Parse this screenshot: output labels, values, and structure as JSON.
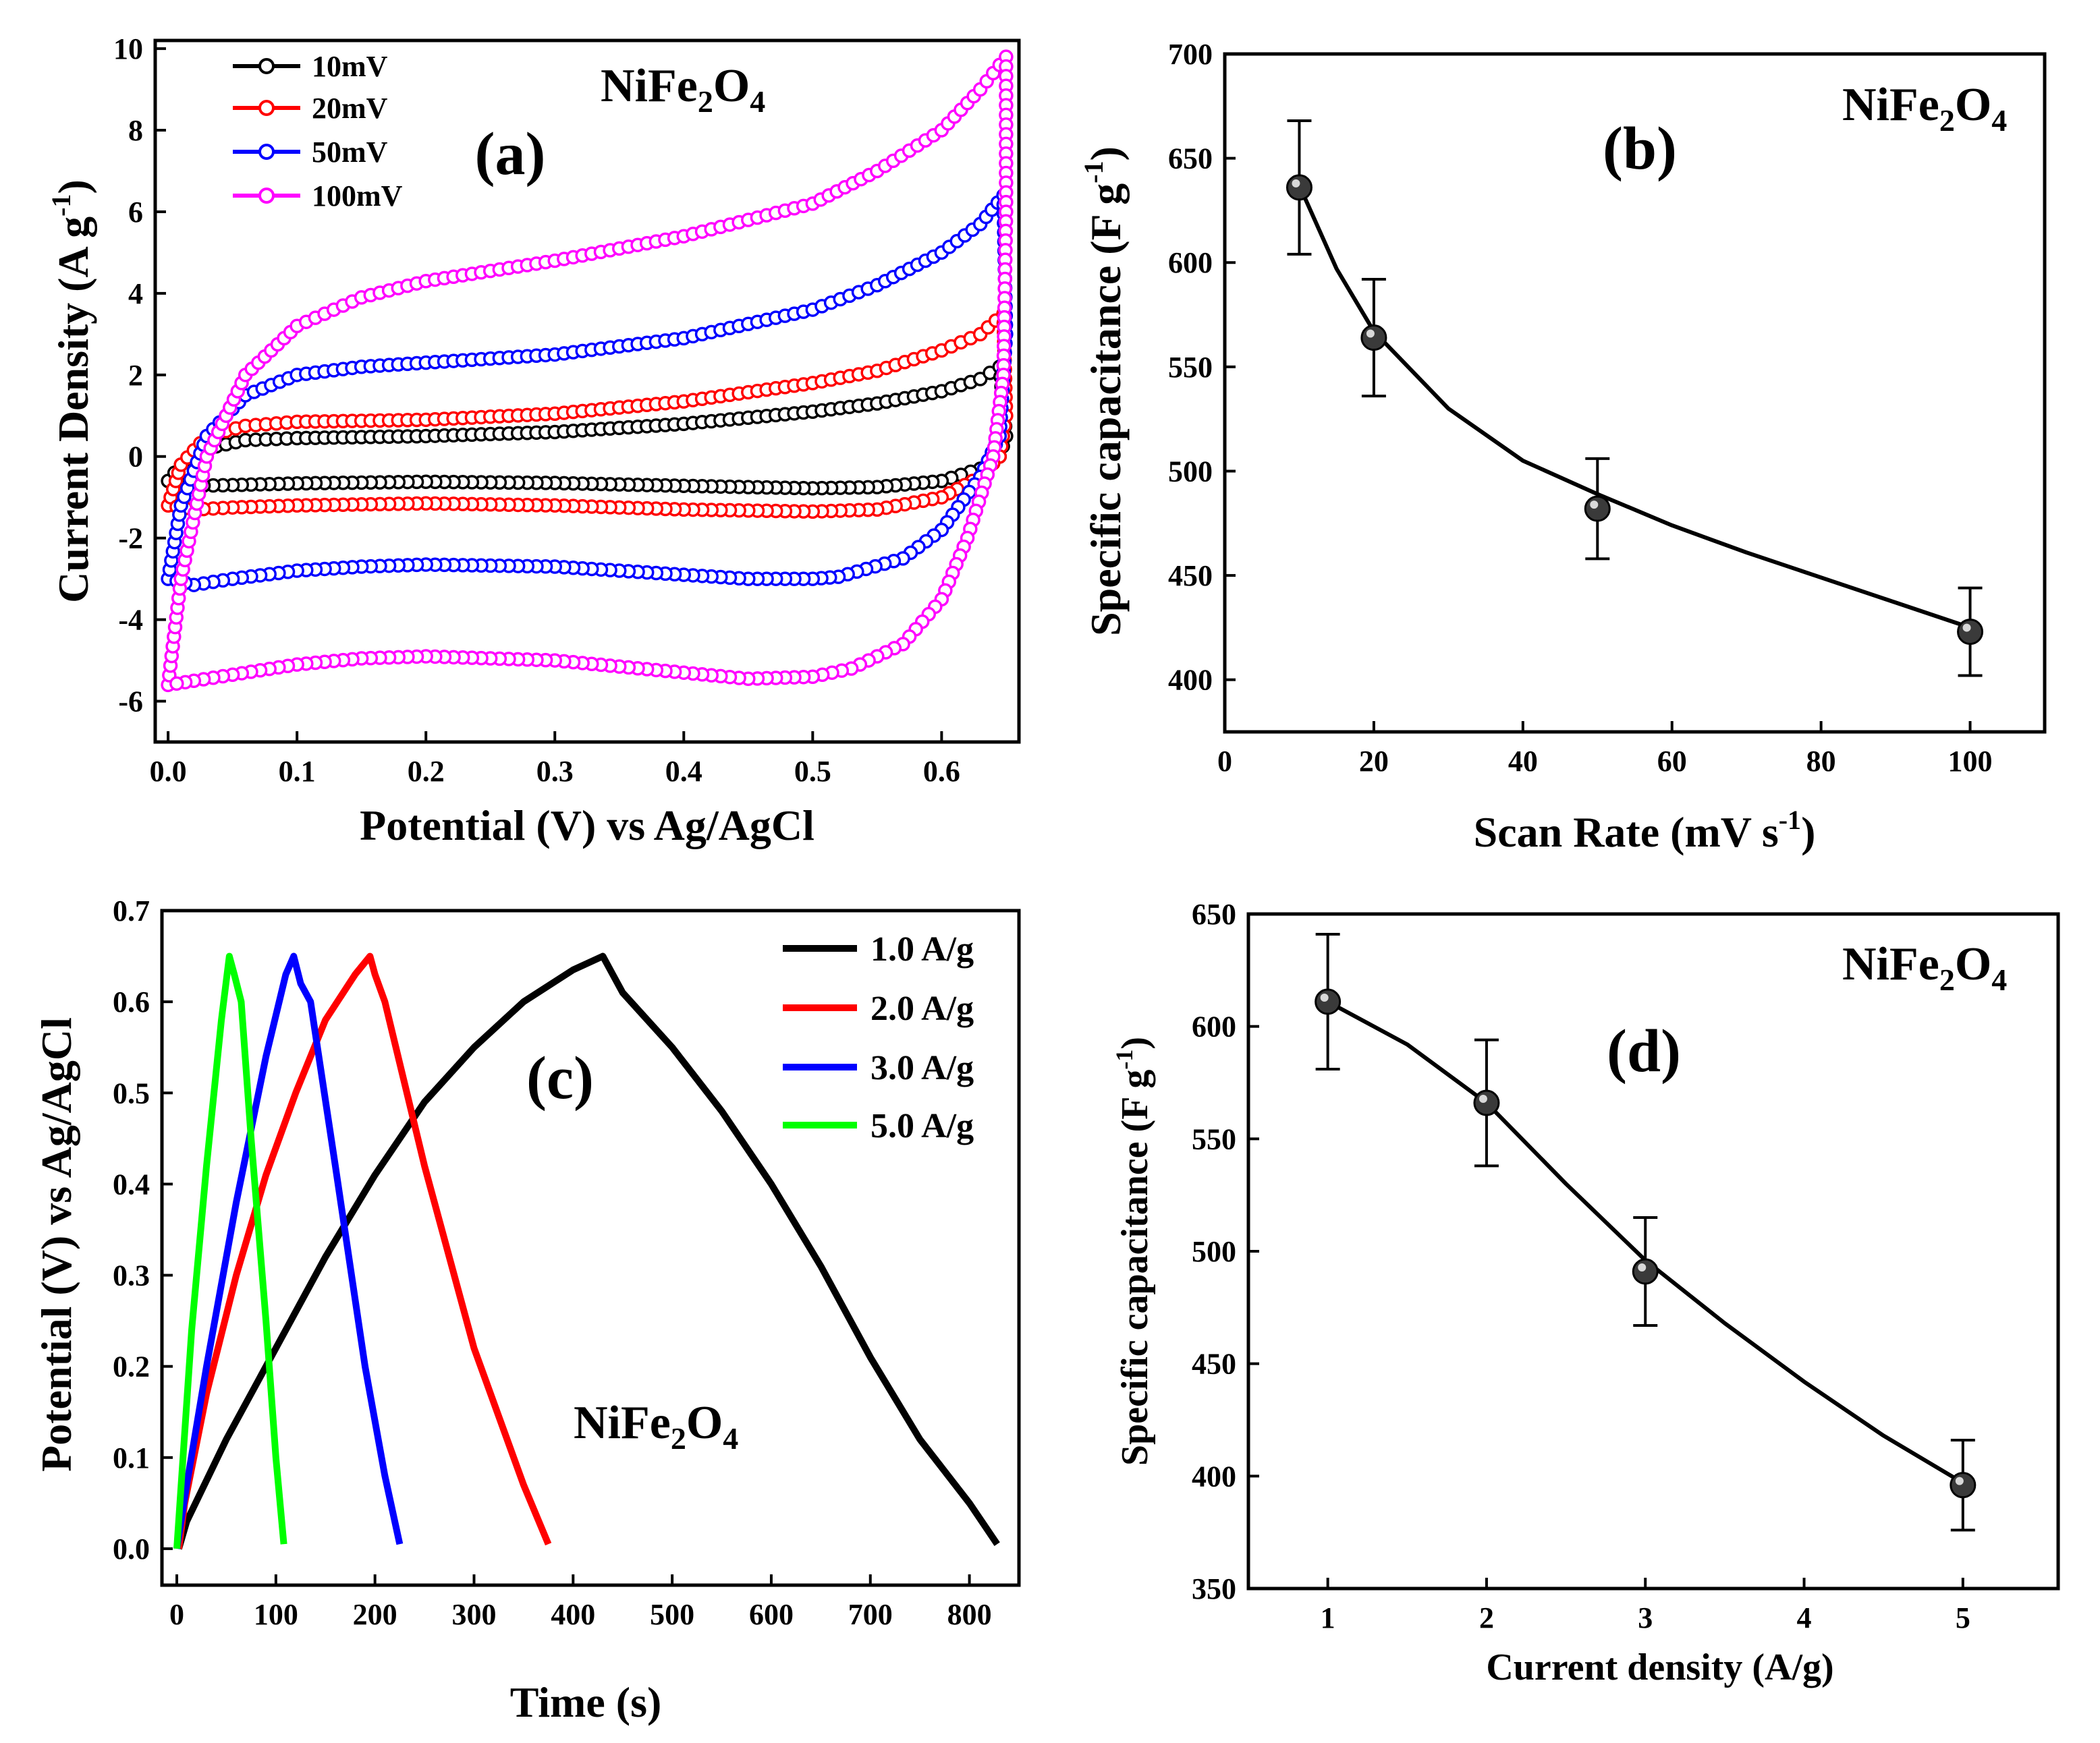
{
  "colors": {
    "10mV": "#000000",
    "20mV": "#ff0000",
    "50mV": "#0000ff",
    "100mV": "#ff00ff",
    "1.0 A/g": "#000000",
    "2.0 A/g": "#ff0000",
    "3.0 A/g": "#0000ff",
    "5.0 A/g": "#00ff00"
  },
  "chart_data": [
    {
      "panel": "(a)",
      "type": "line",
      "compound": {
        "base1": "NiFe",
        "sub1": "2",
        "base2": "O",
        "sub2": "4"
      },
      "xlabel": "Potential (V) vs Ag/AgCl",
      "ylabel": {
        "main": "Current Density (A g",
        "sup": "-1",
        "tail": ")"
      },
      "xlim": [
        -0.01,
        0.66
      ],
      "ylim": [
        -7,
        10.2
      ],
      "xticks": [
        "0.0",
        "0.1",
        "0.2",
        "0.3",
        "0.4",
        "0.5",
        "0.6"
      ],
      "xtick_values": [
        0.0,
        0.1,
        0.2,
        0.3,
        0.4,
        0.5,
        0.6
      ],
      "yticks": [
        "-6",
        "-4",
        "-2",
        "0",
        "2",
        "4",
        "6",
        "8",
        "10"
      ],
      "ytick_values": [
        -6,
        -4,
        -2,
        0,
        2,
        4,
        6,
        8,
        10
      ],
      "legend_position": "top-left",
      "series": [
        {
          "name": "10mV",
          "x": [
            0.0,
            0.01,
            0.03,
            0.06,
            0.1,
            0.2,
            0.3,
            0.4,
            0.5,
            0.55,
            0.6,
            0.63,
            0.645,
            0.65,
            0.645,
            0.63,
            0.6,
            0.55,
            0.5,
            0.4,
            0.3,
            0.2,
            0.1,
            0.05,
            0.02,
            0.0
          ],
          "y": [
            -0.6,
            -0.2,
            0.2,
            0.4,
            0.45,
            0.5,
            0.6,
            0.8,
            1.1,
            1.3,
            1.6,
            1.9,
            2.2,
            0.5,
            0.0,
            -0.3,
            -0.6,
            -0.75,
            -0.78,
            -0.72,
            -0.65,
            -0.62,
            -0.66,
            -0.7,
            -0.72,
            -0.6
          ]
        },
        {
          "name": "20mV",
          "x": [
            0.0,
            0.01,
            0.03,
            0.06,
            0.1,
            0.2,
            0.3,
            0.4,
            0.5,
            0.55,
            0.6,
            0.63,
            0.648,
            0.65,
            0.645,
            0.63,
            0.6,
            0.55,
            0.5,
            0.4,
            0.3,
            0.2,
            0.1,
            0.05,
            0.02,
            0.0
          ],
          "y": [
            -1.2,
            -0.2,
            0.5,
            0.75,
            0.85,
            0.9,
            1.05,
            1.35,
            1.8,
            2.1,
            2.6,
            3.0,
            3.5,
            1.0,
            0.0,
            -0.5,
            -1.0,
            -1.3,
            -1.35,
            -1.3,
            -1.2,
            -1.15,
            -1.2,
            -1.25,
            -1.3,
            -1.2
          ]
        },
        {
          "name": "50mV",
          "x": [
            0.0,
            0.01,
            0.03,
            0.06,
            0.1,
            0.15,
            0.2,
            0.3,
            0.4,
            0.5,
            0.55,
            0.6,
            0.63,
            0.648,
            0.65,
            0.645,
            0.63,
            0.6,
            0.57,
            0.52,
            0.5,
            0.45,
            0.4,
            0.3,
            0.2,
            0.15,
            0.1,
            0.05,
            0.02,
            0.0
          ],
          "y": [
            -3.0,
            -1.2,
            0.5,
            1.5,
            2.0,
            2.2,
            2.3,
            2.5,
            2.9,
            3.6,
            4.2,
            5.0,
            5.7,
            6.4,
            3.0,
            0.5,
            -0.5,
            -1.8,
            -2.5,
            -2.95,
            -3.0,
            -3.0,
            -2.9,
            -2.7,
            -2.65,
            -2.7,
            -2.8,
            -3.0,
            -3.15,
            -3.0
          ]
        },
        {
          "name": "100mV",
          "x": [
            0.0,
            0.01,
            0.03,
            0.06,
            0.1,
            0.15,
            0.2,
            0.3,
            0.4,
            0.5,
            0.55,
            0.6,
            0.63,
            0.645,
            0.65,
            0.65,
            0.648,
            0.64,
            0.62,
            0.6,
            0.57,
            0.53,
            0.5,
            0.45,
            0.4,
            0.3,
            0.2,
            0.15,
            0.1,
            0.05,
            0.02,
            0.0
          ],
          "y": [
            -5.6,
            -3.0,
            0.0,
            2.0,
            3.2,
            3.9,
            4.3,
            4.8,
            5.4,
            6.2,
            7.0,
            8.0,
            9.0,
            9.6,
            9.8,
            6.0,
            2.0,
            0.0,
            -2.0,
            -3.5,
            -4.6,
            -5.2,
            -5.4,
            -5.45,
            -5.3,
            -5.0,
            -4.9,
            -4.95,
            -5.1,
            -5.35,
            -5.5,
            -5.6
          ]
        }
      ]
    },
    {
      "panel": "(b)",
      "type": "scatter",
      "compound": {
        "base1": "NiFe",
        "sub1": "2",
        "base2": "O",
        "sub2": "4"
      },
      "xlabel": {
        "main": "Scan Rate (mV s",
        "sup": "-1",
        "tail": ")"
      },
      "ylabel": {
        "main": "Specific capacitance (F g",
        "sup": "-1",
        "tail": ")"
      },
      "xlim": [
        0,
        110
      ],
      "ylim": [
        375,
        700
      ],
      "xticks": [
        "0",
        "20",
        "40",
        "60",
        "80",
        "100"
      ],
      "xtick_values": [
        0,
        20,
        40,
        60,
        80,
        100
      ],
      "yticks": [
        "400",
        "450",
        "500",
        "550",
        "600",
        "650",
        "700"
      ],
      "ytick_values": [
        400,
        450,
        500,
        550,
        600,
        650,
        700
      ],
      "points": {
        "x": [
          10,
          20,
          50,
          100
        ],
        "y": [
          636,
          564,
          482,
          423
        ],
        "err": [
          32,
          28,
          24,
          21
        ]
      },
      "fit": {
        "x": [
          10,
          15,
          20,
          30,
          40,
          50,
          60,
          70,
          80,
          90,
          100
        ],
        "y": [
          637,
          597,
          567,
          530,
          505,
          489,
          474,
          461,
          449,
          437,
          425
        ]
      }
    },
    {
      "panel": "(c)",
      "type": "line",
      "compound": {
        "base1": "NiFe",
        "sub1": "2",
        "base2": "O",
        "sub2": "4"
      },
      "xlabel": "Time (s)",
      "ylabel": "Potential (V) vs Ag/AgCl",
      "xlim": [
        -15,
        850
      ],
      "ylim": [
        -0.04,
        0.7
      ],
      "xticks": [
        "0",
        "100",
        "200",
        "300",
        "400",
        "500",
        "600",
        "700",
        "800"
      ],
      "xtick_values": [
        0,
        100,
        200,
        300,
        400,
        500,
        600,
        700,
        800
      ],
      "yticks": [
        "0.0",
        "0.1",
        "0.2",
        "0.3",
        "0.4",
        "0.5",
        "0.6",
        "0.7"
      ],
      "ytick_values": [
        0.0,
        0.1,
        0.2,
        0.3,
        0.4,
        0.5,
        0.6,
        0.7
      ],
      "legend_position": "top-right",
      "series": [
        {
          "name": "1.0 A/g",
          "x": [
            2,
            10,
            50,
            100,
            150,
            200,
            250,
            300,
            350,
            400,
            430,
            440,
            450,
            500,
            550,
            600,
            650,
            700,
            750,
            800,
            828
          ],
          "y": [
            0.0,
            0.03,
            0.12,
            0.22,
            0.32,
            0.41,
            0.49,
            0.55,
            0.6,
            0.635,
            0.65,
            0.63,
            0.61,
            0.55,
            0.48,
            0.4,
            0.31,
            0.21,
            0.12,
            0.05,
            0.005
          ]
        },
        {
          "name": "2.0 A/g",
          "x": [
            2,
            8,
            30,
            60,
            90,
            120,
            150,
            180,
            195,
            200,
            210,
            250,
            300,
            350,
            375
          ],
          "y": [
            0.0,
            0.05,
            0.17,
            0.3,
            0.41,
            0.5,
            0.58,
            0.63,
            0.65,
            0.63,
            0.6,
            0.42,
            0.22,
            0.07,
            0.005
          ]
        },
        {
          "name": "3.0 A/g",
          "x": [
            0,
            10,
            30,
            60,
            90,
            110,
            118,
            125,
            135,
            160,
            190,
            210,
            225
          ],
          "y": [
            0.0,
            0.07,
            0.2,
            0.38,
            0.54,
            0.63,
            0.65,
            0.62,
            0.6,
            0.42,
            0.2,
            0.08,
            0.005
          ]
        },
        {
          "name": "5.0 A/g",
          "x": [
            0,
            5,
            15,
            30,
            45,
            53,
            58,
            65,
            75,
            90,
            100,
            108
          ],
          "y": [
            0.0,
            0.08,
            0.24,
            0.42,
            0.58,
            0.65,
            0.63,
            0.6,
            0.45,
            0.25,
            0.1,
            0.005
          ]
        }
      ]
    },
    {
      "panel": "(d)",
      "type": "scatter",
      "compound": {
        "base1": "NiFe",
        "sub1": "2",
        "base2": "O",
        "sub2": "4"
      },
      "xlabel": "Current density (A/g)",
      "ylabel": {
        "main": "Specific capacitance (F g",
        "sup": "-1",
        "tail": ")"
      },
      "xlim": [
        0.5,
        5.6
      ],
      "ylim": [
        350,
        650
      ],
      "xticks": [
        "1",
        "2",
        "3",
        "4",
        "5"
      ],
      "xtick_values": [
        1,
        2,
        3,
        4,
        5
      ],
      "yticks": [
        "350",
        "400",
        "450",
        "500",
        "550",
        "600",
        "650"
      ],
      "ytick_values": [
        350,
        400,
        450,
        500,
        550,
        600,
        650
      ],
      "points": {
        "x": [
          1,
          2,
          3,
          5
        ],
        "y": [
          611,
          566,
          491,
          396
        ],
        "err": [
          30,
          28,
          24,
          20
        ]
      },
      "fit": {
        "x": [
          1,
          1.5,
          2,
          2.5,
          3,
          3.5,
          4,
          4.5,
          5
        ],
        "y": [
          611,
          592,
          566,
          530,
          496,
          468,
          442,
          418,
          397
        ]
      }
    }
  ]
}
